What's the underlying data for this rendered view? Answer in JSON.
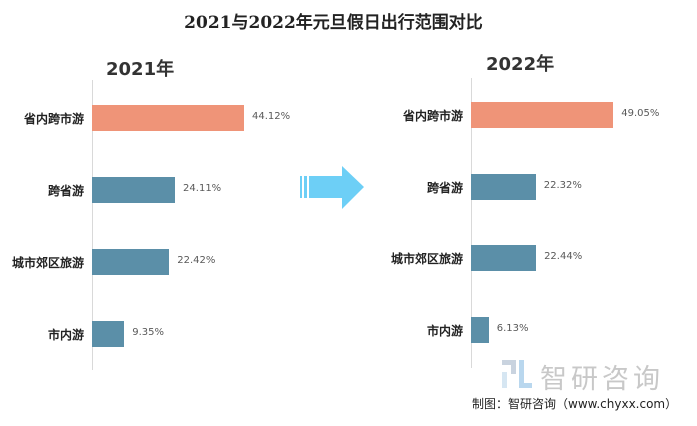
{
  "chart_data": [
    {
      "type": "bar",
      "orientation": "horizontal",
      "title": "2021年",
      "categories": [
        "省内跨市游",
        "跨省游",
        "城市郊区旅游",
        "市内游"
      ],
      "values": [
        44.12,
        24.11,
        22.42,
        9.35
      ],
      "unit": "%",
      "xlim": [
        0,
        60
      ],
      "colors": [
        "#EF9478",
        "#5B8FA8",
        "#5B8FA8",
        "#5B8FA8"
      ],
      "grid": false
    },
    {
      "type": "bar",
      "orientation": "horizontal",
      "title": "2022年",
      "categories": [
        "省内跨市游",
        "跨省游",
        "城市郊区旅游",
        "市内游"
      ],
      "values": [
        49.05,
        22.32,
        22.44,
        6.13
      ],
      "unit": "%",
      "xlim": [
        0,
        60
      ],
      "colors": [
        "#EF9478",
        "#5B8FA8",
        "#5B8FA8",
        "#5B8FA8"
      ],
      "grid": false
    }
  ],
  "title": "2021与2022年元旦假日出行范围对比",
  "arrow_color": "#6DCFF6",
  "watermark": "智研咨询",
  "credit": "制图：智研咨询（www.chyxx.com）"
}
